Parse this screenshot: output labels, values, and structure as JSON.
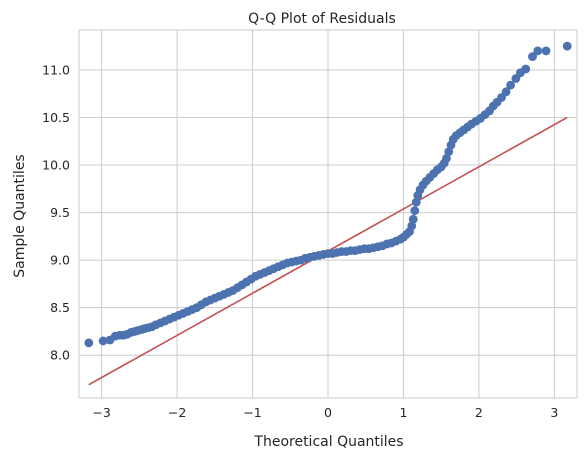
{
  "chart_data": {
    "type": "scatter",
    "title": "Q-Q Plot of Residuals",
    "xlabel": "Theoretical Quantiles",
    "ylabel": "Sample Quantiles",
    "xlim": [
      -3.3,
      3.3
    ],
    "ylim": [
      7.55,
      11.42
    ],
    "grid": true,
    "x_ticks": [
      -3,
      -2,
      -1,
      0,
      1,
      2,
      3
    ],
    "x_tick_labels": [
      "−3",
      "−2",
      "−1",
      "0",
      "1",
      "2",
      "3"
    ],
    "y_ticks": [
      8.0,
      8.5,
      9.0,
      9.5,
      10.0,
      10.5,
      11.0
    ],
    "y_tick_labels": [
      "8.0",
      "8.5",
      "9.0",
      "9.5",
      "10.0",
      "10.5",
      "11.0"
    ],
    "series": [
      {
        "type": "scatter",
        "color": "#4c72b0",
        "points": [
          [
            -3.17,
            8.13
          ],
          [
            -2.98,
            8.15
          ],
          [
            -2.89,
            8.16
          ],
          [
            -2.82,
            8.2
          ],
          [
            -2.76,
            8.21
          ],
          [
            -2.71,
            8.21
          ],
          [
            -2.66,
            8.22
          ],
          [
            -2.61,
            8.24
          ],
          [
            -2.56,
            8.25
          ],
          [
            -2.52,
            8.26
          ],
          [
            -2.47,
            8.27
          ],
          [
            -2.43,
            8.28
          ],
          [
            -2.38,
            8.29
          ],
          [
            -2.33,
            8.3
          ],
          [
            -2.28,
            8.32
          ],
          [
            -2.22,
            8.34
          ],
          [
            -2.16,
            8.36
          ],
          [
            -2.1,
            8.38
          ],
          [
            -2.04,
            8.4
          ],
          [
            -1.98,
            8.42
          ],
          [
            -1.92,
            8.44
          ],
          [
            -1.86,
            8.46
          ],
          [
            -1.8,
            8.48
          ],
          [
            -1.74,
            8.5
          ],
          [
            -1.68,
            8.53
          ],
          [
            -1.62,
            8.56
          ],
          [
            -1.56,
            8.58
          ],
          [
            -1.5,
            8.6
          ],
          [
            -1.44,
            8.62
          ],
          [
            -1.38,
            8.64
          ],
          [
            -1.32,
            8.66
          ],
          [
            -1.26,
            8.68
          ],
          [
            -1.2,
            8.71
          ],
          [
            -1.14,
            8.74
          ],
          [
            -1.08,
            8.77
          ],
          [
            -1.02,
            8.8
          ],
          [
            -0.96,
            8.83
          ],
          [
            -0.9,
            8.85
          ],
          [
            -0.84,
            8.87
          ],
          [
            -0.78,
            8.89
          ],
          [
            -0.72,
            8.91
          ],
          [
            -0.66,
            8.93
          ],
          [
            -0.6,
            8.95
          ],
          [
            -0.54,
            8.97
          ],
          [
            -0.48,
            8.98
          ],
          [
            -0.42,
            8.99
          ],
          [
            -0.36,
            9.0
          ],
          [
            -0.3,
            9.02
          ],
          [
            -0.24,
            9.03
          ],
          [
            -0.18,
            9.04
          ],
          [
            -0.12,
            9.05
          ],
          [
            -0.06,
            9.06
          ],
          [
            0.0,
            9.07
          ],
          [
            0.06,
            9.07
          ],
          [
            0.12,
            9.08
          ],
          [
            0.18,
            9.09
          ],
          [
            0.24,
            9.09
          ],
          [
            0.3,
            9.1
          ],
          [
            0.36,
            9.1
          ],
          [
            0.42,
            9.11
          ],
          [
            0.48,
            9.12
          ],
          [
            0.54,
            9.12
          ],
          [
            0.6,
            9.13
          ],
          [
            0.66,
            9.14
          ],
          [
            0.72,
            9.15
          ],
          [
            0.78,
            9.17
          ],
          [
            0.84,
            9.18
          ],
          [
            0.9,
            9.2
          ],
          [
            0.96,
            9.22
          ],
          [
            1.0,
            9.24
          ],
          [
            1.04,
            9.27
          ],
          [
            1.08,
            9.3
          ],
          [
            1.11,
            9.36
          ],
          [
            1.13,
            9.43
          ],
          [
            1.15,
            9.52
          ],
          [
            1.17,
            9.61
          ],
          [
            1.19,
            9.68
          ],
          [
            1.22,
            9.74
          ],
          [
            1.26,
            9.79
          ],
          [
            1.3,
            9.83
          ],
          [
            1.35,
            9.87
          ],
          [
            1.4,
            9.91
          ],
          [
            1.45,
            9.95
          ],
          [
            1.5,
            9.98
          ],
          [
            1.54,
            10.02
          ],
          [
            1.57,
            10.07
          ],
          [
            1.6,
            10.14
          ],
          [
            1.63,
            10.21
          ],
          [
            1.66,
            10.27
          ],
          [
            1.7,
            10.31
          ],
          [
            1.75,
            10.34
          ],
          [
            1.8,
            10.37
          ],
          [
            1.85,
            10.4
          ],
          [
            1.9,
            10.43
          ],
          [
            1.96,
            10.46
          ],
          [
            2.02,
            10.49
          ],
          [
            2.08,
            10.53
          ],
          [
            2.14,
            10.57
          ],
          [
            2.19,
            10.62
          ],
          [
            2.24,
            10.66
          ],
          [
            2.3,
            10.71
          ],
          [
            2.36,
            10.77
          ],
          [
            2.42,
            10.84
          ],
          [
            2.49,
            10.91
          ],
          [
            2.55,
            10.97
          ],
          [
            2.62,
            11.01
          ],
          [
            2.71,
            11.14
          ],
          [
            2.78,
            11.2
          ],
          [
            2.89,
            11.2
          ],
          [
            3.17,
            11.25
          ]
        ]
      },
      {
        "type": "line",
        "color": "#c44e52",
        "points": [
          [
            -3.17,
            7.69
          ],
          [
            3.17,
            10.5
          ]
        ]
      }
    ]
  }
}
